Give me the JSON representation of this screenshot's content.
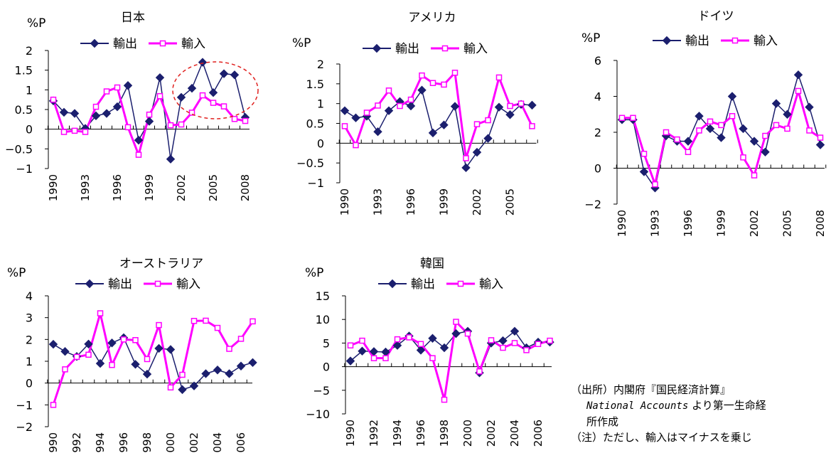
{
  "chart_data": [
    {
      "type": "line",
      "title": "日本",
      "ylabel": "%P",
      "ylim": [
        -1,
        2
      ],
      "yticks": [
        "2",
        "1.5",
        "1",
        "0.5",
        "0",
        "−0.5",
        "−1"
      ],
      "x": [
        1990,
        1991,
        1992,
        1993,
        1994,
        1995,
        1996,
        1997,
        1998,
        1999,
        2000,
        2001,
        2002,
        2003,
        2004,
        2005,
        2006,
        2007,
        2008
      ],
      "xtick_labels": [
        "1990",
        "1993",
        "1996",
        "1999",
        "2002",
        "2005",
        "2008"
      ],
      "series": [
        {
          "name": "輸出",
          "values": [
            0.72,
            0.43,
            0.4,
            0.02,
            0.34,
            0.4,
            0.57,
            1.11,
            -0.28,
            0.2,
            1.31,
            -0.76,
            0.81,
            1.04,
            1.7,
            0.93,
            1.41,
            1.38,
            0.3
          ]
        },
        {
          "name": "輸入",
          "values": [
            0.75,
            -0.07,
            -0.04,
            -0.07,
            0.57,
            0.96,
            1.06,
            0.05,
            -0.65,
            0.37,
            0.84,
            0.1,
            0.12,
            0.42,
            0.86,
            0.67,
            0.58,
            0.26,
            0.21
          ]
        }
      ],
      "annotation": "dashed-red-ellipse"
    },
    {
      "type": "line",
      "title": "アメリカ",
      "ylabel": "%P",
      "ylim": [
        -1,
        2
      ],
      "yticks": [
        "2",
        "1.5",
        "1",
        "0.5",
        "0",
        "−0.5",
        "−1"
      ],
      "x": [
        1990,
        1991,
        1992,
        1993,
        1994,
        1995,
        1996,
        1997,
        1998,
        1999,
        2000,
        2001,
        2002,
        2003,
        2004,
        2005,
        2006,
        2007
      ],
      "xtick_labels": [
        "1990",
        "1993",
        "1996",
        "1999",
        "2002",
        "2005"
      ],
      "series": [
        {
          "name": "輸出",
          "values": [
            0.82,
            0.64,
            0.68,
            0.29,
            0.82,
            1.05,
            0.94,
            1.34,
            0.26,
            0.46,
            0.93,
            -0.62,
            -0.23,
            0.12,
            0.91,
            0.72,
            0.98,
            0.96
          ]
        },
        {
          "name": "輸入",
          "values": [
            0.43,
            -0.05,
            0.77,
            0.95,
            1.33,
            0.94,
            1.1,
            1.71,
            1.52,
            1.48,
            1.78,
            -0.38,
            0.48,
            0.58,
            1.66,
            0.94,
            1.0,
            0.43
          ]
        }
      ]
    },
    {
      "type": "line",
      "title": "ドイツ",
      "ylabel": "%P",
      "ylim": [
        -2,
        6
      ],
      "yticks": [
        "6",
        "4",
        "2",
        "0",
        "−2"
      ],
      "x": [
        1990,
        1991,
        1992,
        1993,
        1994,
        1995,
        1996,
        1997,
        1998,
        1999,
        2000,
        2001,
        2002,
        2003,
        2004,
        2005,
        2006,
        2007,
        2008
      ],
      "xtick_labels": [
        "1990",
        "1993",
        "1996",
        "1999",
        "2002",
        "2005",
        "2008"
      ],
      "series": [
        {
          "name": "輸出",
          "values": [
            2.7,
            2.7,
            -0.2,
            -1.1,
            1.8,
            1.5,
            1.5,
            2.9,
            2.2,
            1.7,
            4.0,
            2.2,
            1.5,
            0.9,
            3.6,
            3.0,
            5.2,
            3.4,
            1.3
          ]
        },
        {
          "name": "輸入",
          "values": [
            2.8,
            2.8,
            0.8,
            -0.9,
            2.0,
            1.6,
            0.9,
            2.1,
            2.6,
            2.4,
            2.9,
            0.6,
            -0.4,
            1.8,
            2.4,
            2.2,
            4.3,
            2.1,
            1.7
          ]
        }
      ]
    },
    {
      "type": "line",
      "title": "オーストラリア",
      "ylabel": "%P",
      "ylim": [
        -2,
        4
      ],
      "yticks": [
        "4",
        "3",
        "2",
        "1",
        "0",
        "−1",
        "−2"
      ],
      "x": [
        1990,
        1991,
        1992,
        1993,
        1994,
        1995,
        1996,
        1997,
        1998,
        1999,
        2000,
        2001,
        2002,
        2003,
        2004,
        2005,
        2006,
        2007
      ],
      "xtick_labels": [
        "1990",
        "1992",
        "1994",
        "1996",
        "1998",
        "2000",
        "2002",
        "2004",
        "2006"
      ],
      "series": [
        {
          "name": "輸出",
          "values": [
            1.78,
            1.45,
            1.22,
            1.79,
            0.9,
            1.84,
            2.08,
            0.86,
            0.41,
            1.59,
            1.54,
            -0.3,
            -0.13,
            0.43,
            0.6,
            0.43,
            0.78,
            0.94
          ]
        },
        {
          "name": "輸入",
          "values": [
            -1.0,
            0.63,
            1.2,
            1.3,
            3.2,
            0.83,
            2.0,
            1.97,
            1.1,
            2.66,
            -0.2,
            0.38,
            2.85,
            2.86,
            2.53,
            1.57,
            2.03,
            2.83
          ]
        }
      ]
    },
    {
      "type": "line",
      "title": "韓国",
      "ylabel": "%P",
      "ylim": [
        -10,
        15
      ],
      "yticks": [
        "15",
        "10",
        "5",
        "0",
        "−5",
        "−10"
      ],
      "x": [
        1990,
        1991,
        1992,
        1993,
        1994,
        1995,
        1996,
        1997,
        1998,
        1999,
        2000,
        2001,
        2002,
        2003,
        2004,
        2005,
        2006,
        2007
      ],
      "xtick_labels": [
        "1990",
        "1992",
        "1994",
        "1996",
        "1998",
        "2000",
        "2002",
        "2004",
        "2006"
      ],
      "series": [
        {
          "name": "輸出",
          "values": [
            1.2,
            3.3,
            3.2,
            3.1,
            4.5,
            6.5,
            3.5,
            6.0,
            4.0,
            7.0,
            7.5,
            -1.3,
            5.0,
            5.5,
            7.5,
            4.0,
            5.2,
            5.2
          ]
        },
        {
          "name": "輸入",
          "values": [
            4.5,
            5.5,
            1.8,
            1.8,
            5.8,
            6.2,
            4.8,
            1.8,
            -7.0,
            9.5,
            7.0,
            -1.0,
            5.6,
            4.0,
            5.0,
            3.5,
            4.8,
            5.5
          ]
        }
      ]
    }
  ],
  "style": {
    "export_color": "#1b1f6e",
    "import_color": "#ff00ff",
    "annotation_color": "#e0201e",
    "export_marker": "diamond",
    "import_marker": "square"
  },
  "notes": {
    "source_line1": "（出所）内閣府『国民経済計算』",
    "source_line2_em": "National Accounts",
    "source_line2_rest": " より第一生命経",
    "source_line3": "所作成",
    "note_line": "（注）ただし、輸入はマイナスを乗じ"
  }
}
